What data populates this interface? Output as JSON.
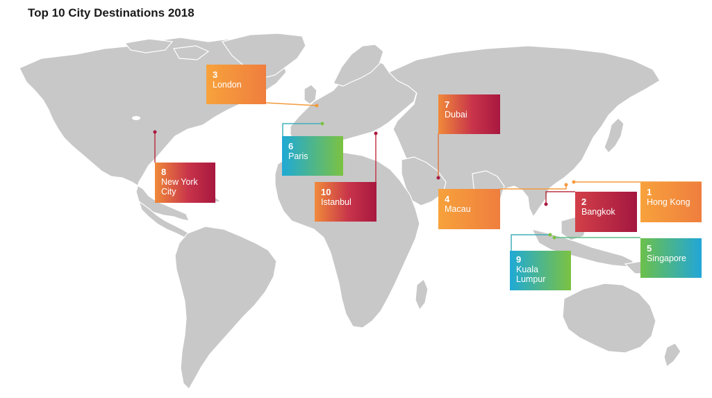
{
  "title": "Top 10 City Destinations 2018",
  "colors": {
    "land": "#c8c8c8",
    "orange": "#f59a3c",
    "red": "#a8183f",
    "blue": "#1fa9d6",
    "green": "#7cc242"
  },
  "destinations": [
    {
      "rank": "1",
      "city": "Hong Kong",
      "style": "orange"
    },
    {
      "rank": "2",
      "city": "Bangkok",
      "style": "red"
    },
    {
      "rank": "3",
      "city": "London",
      "style": "orange"
    },
    {
      "rank": "4",
      "city": "Macau",
      "style": "orange"
    },
    {
      "rank": "5",
      "city": "Singapore",
      "style": "green-blue"
    },
    {
      "rank": "6",
      "city": "Paris",
      "style": "blue-green"
    },
    {
      "rank": "7",
      "city": "Dubai",
      "style": "orange-red"
    },
    {
      "rank": "8",
      "city": "New York City",
      "style": "orange-red"
    },
    {
      "rank": "9",
      "city": "Kuala Lumpur",
      "style": "blue-green"
    },
    {
      "rank": "10",
      "city": "Istanbul",
      "style": "orange-red"
    }
  ]
}
